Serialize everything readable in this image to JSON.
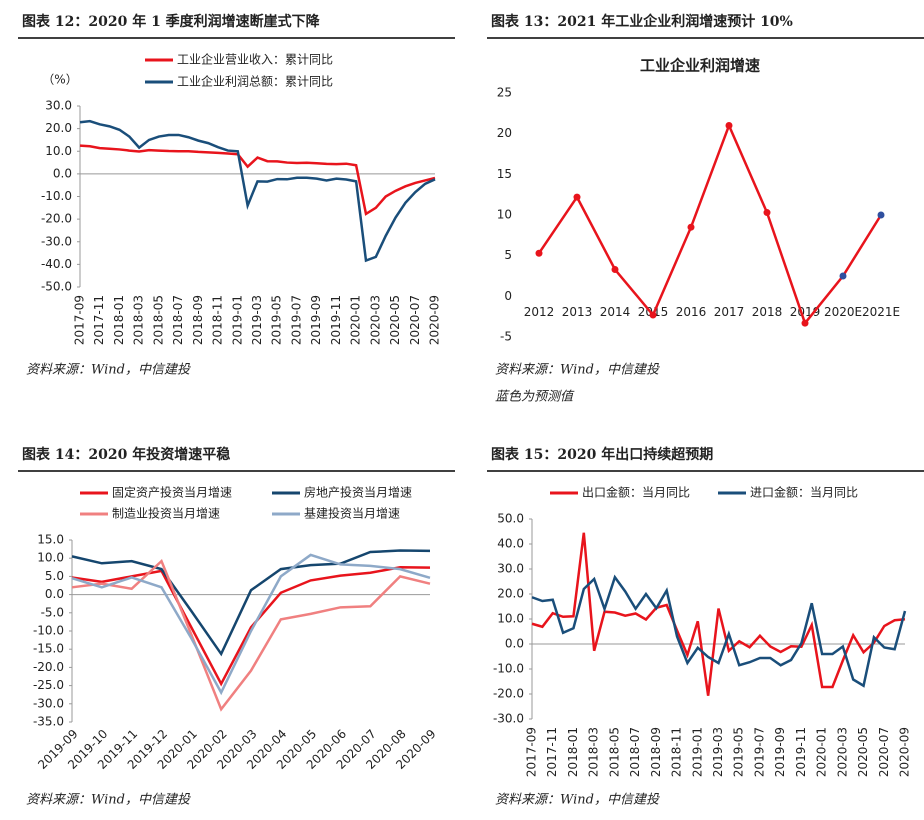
{
  "chart_data": [
    {
      "type": "line",
      "caption": "图表 12：2020 年 1 季度利润增速断崖式下降",
      "y_label": "（%）",
      "source": "资料来源：Wind，中信建投",
      "categories": [
        "2017-09",
        null,
        "2017-11",
        null,
        "2018-01",
        null,
        "2018-03",
        null,
        "2018-05",
        null,
        "2018-07",
        null,
        "2018-09",
        null,
        "2018-11",
        null,
        "2019-01",
        null,
        "2019-03",
        null,
        "2019-05",
        null,
        "2019-07",
        null,
        "2019-09",
        null,
        "2019-11",
        null,
        "2020-01",
        null,
        "2020-03",
        null,
        "2020-05",
        null,
        "2020-07",
        null,
        "2020-09"
      ],
      "series": [
        {
          "name": "工业企业营业收入：累计同比",
          "color": "#e8141c",
          "values": [
            12.5,
            12.2,
            11.4,
            11.1,
            10.8,
            10.3,
            9.9,
            10.5,
            10.3,
            10.1,
            10.0,
            10.0,
            9.7,
            9.5,
            9.3,
            9.0,
            8.7,
            3.2,
            7.2,
            5.6,
            5.5,
            5.0,
            4.8,
            4.9,
            4.7,
            4.4,
            4.3,
            4.5,
            3.8,
            -17.7,
            -15,
            -10,
            -7.5,
            -5.5,
            -4,
            -2.9,
            -1.8
          ]
        },
        {
          "name": "工业企业利润总额：累计同比",
          "color": "#1a4e7a",
          "values": [
            22.8,
            23.3,
            21.9,
            21,
            19.5,
            16.5,
            11.6,
            15,
            16.5,
            17.2,
            17.2,
            16.2,
            14.7,
            13.6,
            11.8,
            10.3,
            10,
            -14,
            -3.3,
            -3.4,
            -2.3,
            -2.4,
            -1.7,
            -1.7,
            -2.1,
            -2.9,
            -2.1,
            -2.5,
            -3.3,
            -38.3,
            -36.7,
            -27.4,
            -19.3,
            -12.8,
            -8.1,
            -4.4,
            -2.4
          ]
        }
      ],
      "ylim": [
        -50,
        30
      ],
      "yticks": [
        {
          "value": -50,
          "label": "-50.0"
        },
        {
          "value": -40,
          "label": "-40.0"
        },
        {
          "value": -30,
          "label": "-30.0"
        },
        {
          "value": -20,
          "label": "-20.0"
        },
        {
          "value": -10,
          "label": "-10.0"
        },
        {
          "value": 0,
          "label": "0.0"
        },
        {
          "value": 10,
          "label": "10.0"
        },
        {
          "value": 20,
          "label": "20.0"
        },
        {
          "value": 30,
          "label": "30.0"
        }
      ]
    },
    {
      "type": "line",
      "caption": "图表 13：2021 年工业企业利润增速预计 10%",
      "title": "工业企业利润增速",
      "source": "资料来源：Wind，中信建投",
      "note": "蓝色为预测值",
      "categories": [
        "2012",
        "2013",
        "2014",
        "2015",
        "2016",
        "2017",
        "2018",
        "2019",
        "2020E",
        "2021E"
      ],
      "series": [
        {
          "color": "#e8141c",
          "values": [
            5.3,
            12.2,
            3.3,
            -2.3,
            8.5,
            21,
            10.3,
            -3.3,
            2.5,
            10
          ],
          "marker_colors": [
            "#e8141c",
            "#e8141c",
            "#e8141c",
            "#e8141c",
            "#e8141c",
            "#e8141c",
            "#e8141c",
            "#e8141c",
            "#2f4f9f",
            "#2f4f9f"
          ]
        }
      ],
      "ylim": [
        -5,
        25
      ],
      "yticks": [
        -5,
        0,
        5,
        10,
        15,
        20,
        25
      ]
    },
    {
      "type": "line",
      "caption": "图表 14：2020 年投资增速平稳",
      "source": "资料来源：Wind，中信建投",
      "categories": [
        "2019-09",
        "2019-10",
        "2019-11",
        "2019-12",
        "2020-01",
        "2020-02",
        "2020-03",
        "2020-04",
        "2020-05",
        "2020-06",
        "2020-07",
        "2020-08",
        "2020-09"
      ],
      "series": [
        {
          "name": "固定资产投资当月增速",
          "color": "#e8141c",
          "values": [
            4.7,
            3.5,
            5,
            6.5,
            -9,
            -24.5,
            -9,
            0.5,
            3.9,
            5.2,
            6,
            7.5,
            7.4
          ]
        },
        {
          "name": "房地产投资当月增速",
          "color": "#15466e",
          "values": [
            10.5,
            8.6,
            9.2,
            7,
            -4.5,
            -16.3,
            1.2,
            7,
            8.1,
            8.5,
            11.7,
            12.1,
            12.0
          ]
        },
        {
          "name": "制造业投资当月增速",
          "color": "#f08080",
          "values": [
            2,
            3,
            1.6,
            9.2,
            -11,
            -31.5,
            -20.9,
            -6.8,
            -5.3,
            -3.5,
            -3.2,
            5,
            3
          ]
        },
        {
          "name": "基建投资当月增速",
          "color": "#8ea9c8",
          "values": [
            4.5,
            2,
            4.7,
            2,
            -12,
            -26.9,
            -10,
            5,
            10.9,
            8.3,
            7.9,
            7,
            4.6
          ]
        }
      ],
      "ylim": [
        -35,
        15
      ],
      "yticks": [
        {
          "value": -35,
          "label": "-35.0"
        },
        {
          "value": -30,
          "label": "-30.0"
        },
        {
          "value": -25,
          "label": "-25.0"
        },
        {
          "value": -20,
          "label": "-20.0"
        },
        {
          "value": -15,
          "label": "-15.0"
        },
        {
          "value": -10,
          "label": "-10.0"
        },
        {
          "value": -5,
          "label": "-5.0"
        },
        {
          "value": 0,
          "label": "0.0"
        },
        {
          "value": 5,
          "label": "5.0"
        },
        {
          "value": 10,
          "label": "10.0"
        },
        {
          "value": 15,
          "label": "15.0"
        }
      ]
    },
    {
      "type": "line",
      "caption": "图表 15：2020 年出口持续超预期",
      "source": "资料来源：Wind，中信建投",
      "categories": [
        "2017-09",
        null,
        "2017-11",
        null,
        "2018-01",
        null,
        "2018-03",
        null,
        "2018-05",
        null,
        "2018-07",
        null,
        "2018-09",
        null,
        "2018-11",
        null,
        "2019-01",
        null,
        "2019-03",
        null,
        "2019-05",
        null,
        "2019-07",
        null,
        "2019-09",
        null,
        "2019-11",
        null,
        "2020-01",
        null,
        "2020-03",
        null,
        "2020-05",
        null,
        "2020-07",
        null,
        "2020-09"
      ],
      "series": [
        {
          "name": "出口金额：当月同比",
          "color": "#e8141c",
          "values": [
            8.1,
            6.9,
            12.3,
            10.9,
            11.1,
            44.5,
            -2.7,
            12.9,
            12.6,
            11.3,
            12.2,
            9.8,
            14.5,
            15.6,
            5.4,
            -4.4,
            9.1,
            -20.7,
            14.2,
            -2.7,
            1.1,
            -1.3,
            3.3,
            -1,
            -3.2,
            -0.9,
            -1.1,
            7.6,
            -17.2,
            -17.2,
            -6.6,
            3.5,
            -3.3,
            0.5,
            7.2,
            9.5,
            9.9
          ]
        },
        {
          "name": "进口金额：当月同比",
          "color": "#1a4e7a",
          "values": [
            18.7,
            17.2,
            17.7,
            4.5,
            6.3,
            22,
            26,
            14,
            26.7,
            21,
            14.1,
            20,
            14.3,
            21.4,
            3,
            -7.6,
            -1.5,
            -5.2,
            -7.6,
            4,
            -8.5,
            -7.3,
            -5.6,
            -5.6,
            -8.5,
            -6.4,
            0.3,
            16.3,
            -4,
            -4,
            -1,
            -14.2,
            -16.7,
            2.7,
            -1.4,
            -2.1,
            13.2
          ]
        }
      ],
      "ylim": [
        -30,
        50
      ],
      "yticks": [
        {
          "value": -30,
          "label": "-30.0"
        },
        {
          "value": -20,
          "label": "-20.0"
        },
        {
          "value": -10,
          "label": "-10.0"
        },
        {
          "value": 0,
          "label": "0.0"
        },
        {
          "value": 10,
          "label": "10.0"
        },
        {
          "value": 20,
          "label": "20.0"
        },
        {
          "value": 30,
          "label": "30.0"
        },
        {
          "value": 40,
          "label": "40.0"
        },
        {
          "value": 50,
          "label": "50.0"
        }
      ]
    }
  ]
}
